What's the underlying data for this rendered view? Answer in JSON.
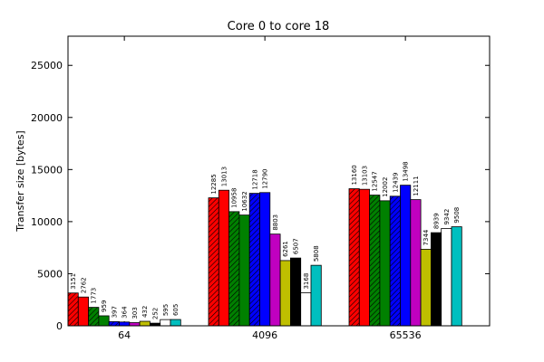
{
  "chart_data": {
    "type": "bar",
    "title": "Core 0 to core 18",
    "xlabel": "",
    "ylabel": "Transfer size [bytes]",
    "ylim": [
      0,
      27800
    ],
    "yticks": [
      0,
      5000,
      10000,
      15000,
      20000,
      25000
    ],
    "categories": [
      "64",
      "4096",
      "65536"
    ],
    "series": [
      {
        "color": "#ff0000",
        "hatch": true,
        "values": [
          3151,
          12285,
          13160
        ]
      },
      {
        "color": "#ff0000",
        "hatch": false,
        "values": [
          2762,
          13013,
          13103
        ]
      },
      {
        "color": "#008000",
        "hatch": true,
        "values": [
          1773,
          10958,
          12547
        ]
      },
      {
        "color": "#008000",
        "hatch": false,
        "values": [
          959,
          10632,
          12002
        ]
      },
      {
        "color": "#0000ff",
        "hatch": true,
        "values": [
          397,
          12718,
          12439
        ]
      },
      {
        "color": "#0000ff",
        "hatch": false,
        "values": [
          364,
          12790,
          13498
        ]
      },
      {
        "color": "#c000c0",
        "hatch": false,
        "values": [
          303,
          8803,
          12111
        ]
      },
      {
        "color": "#bfbf00",
        "hatch": false,
        "values": [
          432,
          6261,
          7344
        ]
      },
      {
        "color": "#000000",
        "hatch": false,
        "values": [
          252,
          6507,
          8939
        ]
      },
      {
        "color": "#ffffff",
        "hatch": false,
        "values": [
          595,
          3168,
          9342
        ]
      },
      {
        "color": "#00bfbf",
        "hatch": false,
        "values": [
          605,
          5808,
          9508
        ]
      }
    ],
    "grid": false,
    "legend": "none"
  }
}
